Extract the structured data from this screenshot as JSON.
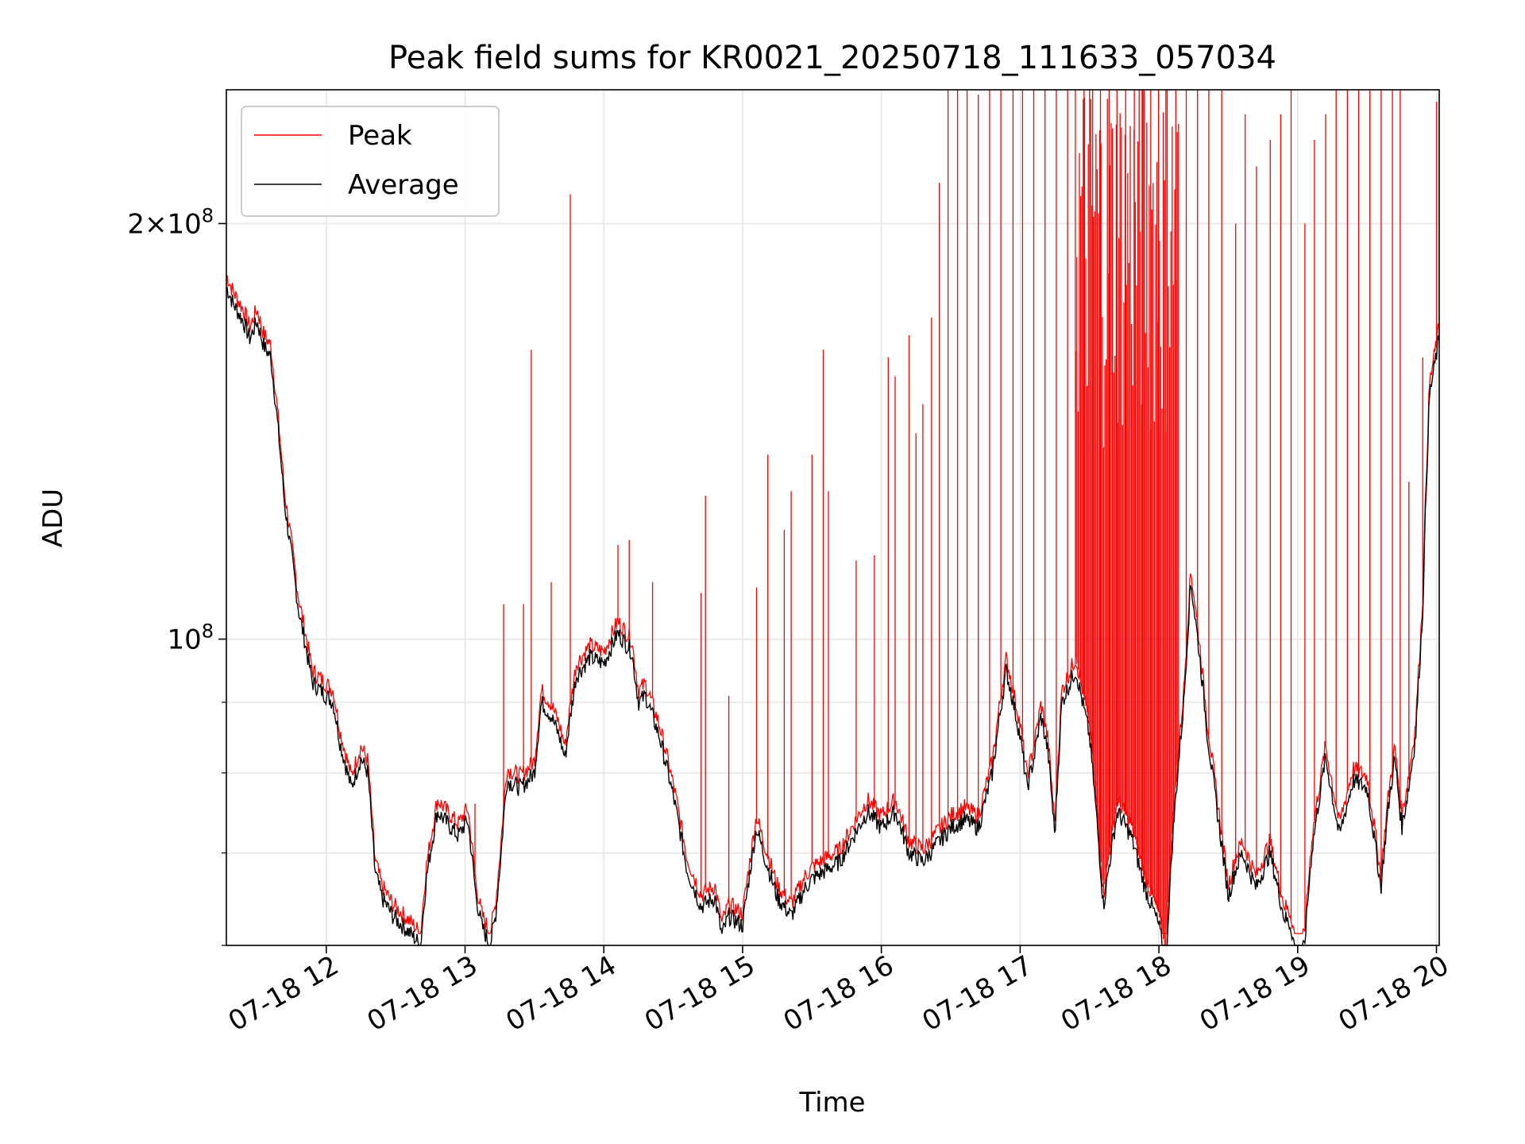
{
  "chart_data": {
    "type": "line",
    "title": "Peak field sums for KR0021_20250718_111633_057034",
    "xlabel": "Time",
    "ylabel": "ADU",
    "yscale": "log",
    "grid": true,
    "legend_position": "upper left",
    "x_axis_unit": "hours of 2025-07-18 (local time)",
    "xlim": [
      11.28,
      20.02
    ],
    "ylim": [
      60000000,
      250000000
    ],
    "x_ticks": [
      12,
      13,
      14,
      15,
      16,
      17,
      18,
      19,
      20
    ],
    "x_tick_labels": [
      "07-18 12",
      "07-18 13",
      "07-18 14",
      "07-18 15",
      "07-18 16",
      "07-18 17",
      "07-18 18",
      "07-18 19",
      "07-18 20"
    ],
    "y_major_ticks": [
      100000000,
      200000000
    ],
    "y_tick_labels": [
      "10^8",
      "2×10^8"
    ],
    "y_minor_ticks": [
      60000000,
      70000000,
      80000000,
      90000000
    ],
    "series": [
      {
        "name": "Average",
        "color": "#000000",
        "x": [
          11.28,
          11.33,
          11.4,
          11.45,
          11.5,
          11.55,
          11.6,
          11.65,
          11.7,
          11.8,
          11.9,
          12.0,
          12.05,
          12.1,
          12.18,
          12.25,
          12.3,
          12.35,
          12.4,
          12.48,
          12.55,
          12.62,
          12.68,
          12.72,
          12.8,
          12.85,
          12.9,
          12.95,
          13.02,
          13.08,
          13.12,
          13.18,
          13.22,
          13.26,
          13.3,
          13.4,
          13.5,
          13.55,
          13.62,
          13.68,
          13.72,
          13.8,
          13.9,
          14.0,
          14.1,
          14.2,
          14.25,
          14.3,
          14.4,
          14.5,
          14.6,
          14.7,
          14.8,
          14.85,
          14.9,
          15.0,
          15.1,
          15.15,
          15.25,
          15.35,
          15.45,
          15.5,
          15.6,
          15.7,
          15.8,
          15.9,
          16.0,
          16.1,
          16.2,
          16.3,
          16.4,
          16.5,
          16.6,
          16.7,
          16.8,
          16.9,
          17.0,
          17.05,
          17.1,
          17.15,
          17.2,
          17.25,
          17.3,
          17.4,
          17.5,
          17.6,
          17.7,
          17.8,
          17.9,
          18.0,
          18.05,
          18.1,
          18.18,
          18.23,
          18.28,
          18.35,
          18.42,
          18.5,
          18.55,
          18.6,
          18.7,
          18.8,
          18.9,
          18.95,
          19.0,
          19.05,
          19.1,
          19.2,
          19.3,
          19.4,
          19.5,
          19.6,
          19.65,
          19.7,
          19.75,
          19.8,
          19.85,
          19.9,
          19.95,
          20.02
        ],
        "y": [
          180000000,
          175000000,
          170000000,
          165000000,
          170000000,
          163000000,
          160000000,
          143000000,
          125000000,
          105000000,
          93000000,
          91000000,
          90000000,
          84000000,
          78000000,
          82000000,
          80000000,
          68000000,
          65000000,
          63000000,
          62000000,
          61000000,
          60000000,
          67000000,
          75000000,
          74000000,
          73000000,
          72000000,
          74000000,
          65000000,
          62000000,
          60000000,
          63000000,
          70000000,
          79000000,
          78000000,
          80000000,
          90000000,
          88000000,
          85000000,
          82000000,
          94000000,
          97000000,
          96000000,
          101000000,
          98000000,
          90000000,
          91000000,
          85000000,
          77000000,
          68000000,
          64000000,
          65000000,
          61000000,
          63000000,
          62000000,
          73000000,
          70000000,
          65000000,
          63000000,
          66000000,
          67000000,
          68000000,
          69000000,
          72000000,
          75000000,
          73000000,
          75000000,
          70000000,
          69000000,
          71000000,
          73000000,
          74000000,
          73000000,
          80000000,
          95000000,
          85000000,
          78000000,
          82000000,
          88000000,
          83000000,
          72000000,
          90000000,
          95000000,
          85000000,
          64000000,
          75000000,
          72000000,
          66000000,
          62000000,
          58000000,
          72000000,
          90000000,
          110000000,
          100000000,
          85000000,
          75000000,
          65000000,
          68000000,
          70000000,
          66000000,
          70000000,
          63000000,
          62000000,
          58000000,
          60000000,
          70000000,
          82000000,
          72000000,
          79000000,
          78000000,
          66000000,
          75000000,
          82000000,
          73000000,
          78000000,
          85000000,
          104000000,
          150000000,
          165000000
        ]
      },
      {
        "name": "Peak",
        "color": "#ff0000",
        "baseline_offset_fraction": 0.02,
        "spikes": [
          {
            "x": 13.07,
            "y": 76000000
          },
          {
            "x": 13.28,
            "y": 106000000
          },
          {
            "x": 13.42,
            "y": 106000000
          },
          {
            "x": 13.48,
            "y": 162000000
          },
          {
            "x": 13.62,
            "y": 110000000
          },
          {
            "x": 13.76,
            "y": 210000000
          },
          {
            "x": 14.1,
            "y": 117000000
          },
          {
            "x": 14.18,
            "y": 118000000
          },
          {
            "x": 14.35,
            "y": 110000000
          },
          {
            "x": 14.7,
            "y": 108000000
          },
          {
            "x": 14.73,
            "y": 127000000
          },
          {
            "x": 14.9,
            "y": 91000000
          },
          {
            "x": 15.1,
            "y": 109000000
          },
          {
            "x": 15.18,
            "y": 136000000
          },
          {
            "x": 15.3,
            "y": 120000000
          },
          {
            "x": 15.35,
            "y": 128000000
          },
          {
            "x": 15.5,
            "y": 136000000
          },
          {
            "x": 15.58,
            "y": 162000000
          },
          {
            "x": 15.62,
            "y": 128000000
          },
          {
            "x": 15.82,
            "y": 114000000
          },
          {
            "x": 15.95,
            "y": 115000000
          },
          {
            "x": 16.05,
            "y": 160000000
          },
          {
            "x": 16.1,
            "y": 155000000
          },
          {
            "x": 16.2,
            "y": 166000000
          },
          {
            "x": 16.25,
            "y": 141000000
          },
          {
            "x": 16.3,
            "y": 148000000
          },
          {
            "x": 16.36,
            "y": 171000000
          },
          {
            "x": 16.42,
            "y": 214000000
          },
          {
            "x": 16.48,
            "y": 250000000
          },
          {
            "x": 16.55,
            "y": 250000000
          },
          {
            "x": 16.62,
            "y": 250000000
          },
          {
            "x": 16.7,
            "y": 248000000
          },
          {
            "x": 16.78,
            "y": 250000000
          },
          {
            "x": 16.86,
            "y": 250000000
          },
          {
            "x": 16.95,
            "y": 250000000
          },
          {
            "x": 17.02,
            "y": 250000000
          },
          {
            "x": 17.1,
            "y": 250000000
          },
          {
            "x": 17.18,
            "y": 250000000
          },
          {
            "x": 17.26,
            "y": 250000000
          },
          {
            "x": 17.34,
            "y": 250000000
          },
          {
            "x": 17.4,
            "y": 250000000
          },
          {
            "x": 17.46,
            "y": 250000000
          },
          {
            "x": 17.52,
            "y": 250000000
          },
          {
            "x": 17.58,
            "y": 250000000
          },
          {
            "x": 17.64,
            "y": 250000000
          },
          {
            "x": 17.7,
            "y": 250000000
          },
          {
            "x": 17.76,
            "y": 250000000
          },
          {
            "x": 17.82,
            "y": 250000000
          },
          {
            "x": 17.88,
            "y": 250000000
          },
          {
            "x": 17.94,
            "y": 250000000
          },
          {
            "x": 18.0,
            "y": 250000000
          },
          {
            "x": 18.06,
            "y": 250000000
          },
          {
            "x": 18.12,
            "y": 250000000
          },
          {
            "x": 18.2,
            "y": 250000000
          },
          {
            "x": 18.28,
            "y": 250000000
          },
          {
            "x": 18.36,
            "y": 250000000
          },
          {
            "x": 18.45,
            "y": 250000000
          },
          {
            "x": 18.55,
            "y": 200000000
          },
          {
            "x": 18.62,
            "y": 240000000
          },
          {
            "x": 18.7,
            "y": 220000000
          },
          {
            "x": 18.8,
            "y": 230000000
          },
          {
            "x": 18.88,
            "y": 240000000
          },
          {
            "x": 18.95,
            "y": 250000000
          },
          {
            "x": 19.05,
            "y": 200000000
          },
          {
            "x": 19.12,
            "y": 230000000
          },
          {
            "x": 19.2,
            "y": 240000000
          },
          {
            "x": 19.28,
            "y": 250000000
          },
          {
            "x": 19.36,
            "y": 250000000
          },
          {
            "x": 19.44,
            "y": 250000000
          },
          {
            "x": 19.52,
            "y": 250000000
          },
          {
            "x": 19.6,
            "y": 250000000
          },
          {
            "x": 19.68,
            "y": 250000000
          },
          {
            "x": 19.74,
            "y": 250000000
          },
          {
            "x": 19.8,
            "y": 130000000
          },
          {
            "x": 19.9,
            "y": 160000000
          },
          {
            "x": 20.0,
            "y": 245000000
          }
        ],
        "dense_band": {
          "x_start": 17.4,
          "x_end": 18.15,
          "y_top": 250000000
        }
      }
    ]
  }
}
